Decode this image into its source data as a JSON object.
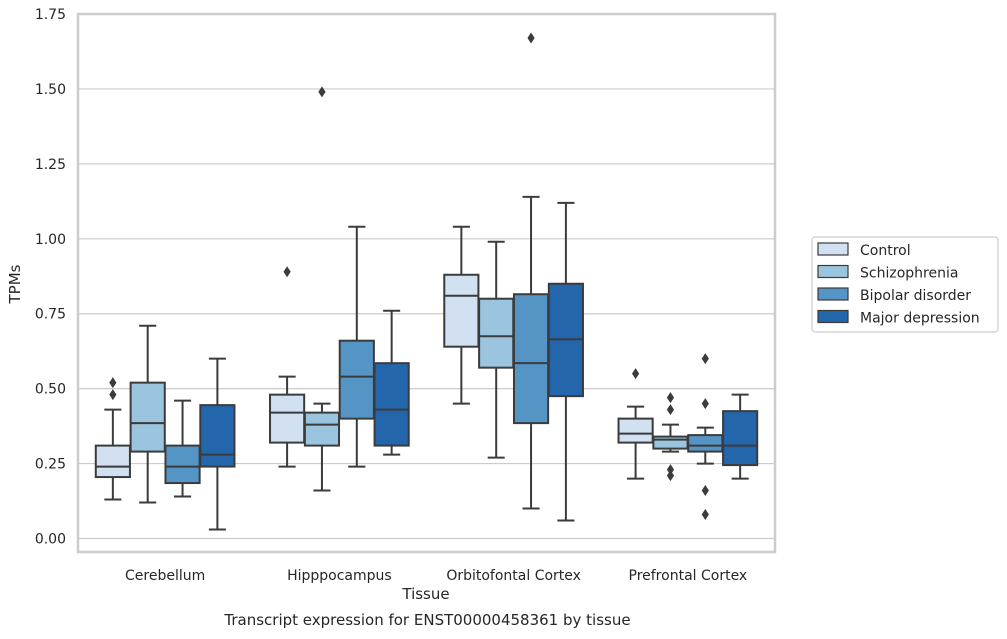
{
  "caption": "Transcript expression for ENST00000458361 by tissue",
  "chart_data": {
    "type": "box",
    "xlabel": "Tissue",
    "ylabel": "TPMs",
    "ylim": [
      -0.045,
      1.75
    ],
    "yticks": [
      "0.00",
      "0.25",
      "0.50",
      "0.75",
      "1.00",
      "1.25",
      "1.50",
      "1.75"
    ],
    "grid": "horizontal",
    "legend_position": "right",
    "categories": [
      "Cerebellum",
      "Hipppocampus",
      "Orbitofontal Cortex",
      "Prefrontal Cortex"
    ],
    "series": [
      {
        "name": "Control",
        "color": "#d1e1f1",
        "boxes": [
          {
            "whislo": 0.13,
            "q1": 0.205,
            "med": 0.24,
            "q3": 0.31,
            "whishi": 0.43,
            "fliers": [
              0.48,
              0.52
            ]
          },
          {
            "whislo": 0.24,
            "q1": 0.32,
            "med": 0.42,
            "q3": 0.48,
            "whishi": 0.54,
            "fliers": [
              0.89
            ]
          },
          {
            "whislo": 0.45,
            "q1": 0.64,
            "med": 0.81,
            "q3": 0.88,
            "whishi": 1.04,
            "fliers": []
          },
          {
            "whislo": 0.2,
            "q1": 0.32,
            "med": 0.35,
            "q3": 0.4,
            "whishi": 0.44,
            "fliers": [
              0.55
            ]
          }
        ]
      },
      {
        "name": "Schizophrenia",
        "color": "#9bc4df",
        "boxes": [
          {
            "whislo": 0.12,
            "q1": 0.29,
            "med": 0.385,
            "q3": 0.52,
            "whishi": 0.71,
            "fliers": []
          },
          {
            "whislo": 0.16,
            "q1": 0.31,
            "med": 0.38,
            "q3": 0.42,
            "whishi": 0.45,
            "fliers": [
              1.49
            ]
          },
          {
            "whislo": 0.27,
            "q1": 0.57,
            "med": 0.675,
            "q3": 0.8,
            "whishi": 0.99,
            "fliers": []
          },
          {
            "whislo": 0.29,
            "q1": 0.3,
            "med": 0.33,
            "q3": 0.34,
            "whishi": 0.38,
            "fliers": [
              0.47,
              0.43,
              0.23,
              0.21
            ]
          }
        ]
      },
      {
        "name": "Bipolar disorder",
        "color": "#5595c6",
        "boxes": [
          {
            "whislo": 0.14,
            "q1": 0.185,
            "med": 0.24,
            "q3": 0.31,
            "whishi": 0.46,
            "fliers": []
          },
          {
            "whislo": 0.24,
            "q1": 0.4,
            "med": 0.54,
            "q3": 0.66,
            "whishi": 1.04,
            "fliers": []
          },
          {
            "whislo": 0.1,
            "q1": 0.385,
            "med": 0.585,
            "q3": 0.815,
            "whishi": 1.14,
            "fliers": [
              1.67
            ]
          },
          {
            "whislo": 0.25,
            "q1": 0.29,
            "med": 0.31,
            "q3": 0.345,
            "whishi": 0.37,
            "fliers": [
              0.6,
              0.45,
              0.16,
              0.08
            ]
          }
        ]
      },
      {
        "name": "Major depression",
        "color": "#2366ac",
        "boxes": [
          {
            "whislo": 0.03,
            "q1": 0.24,
            "med": 0.28,
            "q3": 0.445,
            "whishi": 0.6,
            "fliers": []
          },
          {
            "whislo": 0.28,
            "q1": 0.31,
            "med": 0.43,
            "q3": 0.585,
            "whishi": 0.76,
            "fliers": []
          },
          {
            "whislo": 0.06,
            "q1": 0.475,
            "med": 0.665,
            "q3": 0.85,
            "whishi": 1.12,
            "fliers": []
          },
          {
            "whislo": 0.2,
            "q1": 0.245,
            "med": 0.31,
            "q3": 0.425,
            "whishi": 0.48,
            "fliers": []
          }
        ]
      }
    ]
  }
}
